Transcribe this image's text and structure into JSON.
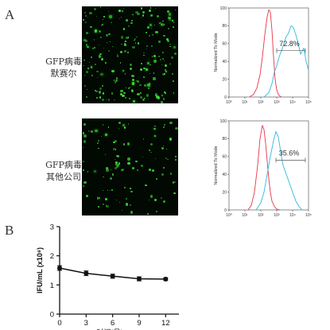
{
  "panels": {
    "A": "A",
    "B": "B"
  },
  "rows": [
    {
      "line1": "GFP病毒",
      "line2": "默赛尔",
      "gfp_density": 0.9
    },
    {
      "line1": "GFP病毒",
      "line2": "其他公司",
      "gfp_density": 0.45
    }
  ],
  "colors": {
    "red": "#e8334a",
    "cyan": "#2fb8e0",
    "gfp": "#3ee03a",
    "line": "#111111"
  },
  "chart_data": [
    {
      "type": "line",
      "subtype": "flow-cytometry-histogram",
      "ylabel": "Normalized To Mode",
      "x_scale": "log",
      "x_ticks": [
        "10⁰",
        "10¹",
        "10²",
        "10³",
        "10⁴",
        "10⁵"
      ],
      "y_ticks": [
        "0",
        "20",
        "40",
        "60",
        "80",
        "100"
      ],
      "ylim": [
        0,
        100
      ],
      "gate_label": "72.8%",
      "series": [
        {
          "color": "#e8334a",
          "x": [
            1.3,
            1.55,
            1.75,
            1.95,
            2.1,
            2.25,
            2.4,
            2.5,
            2.6,
            2.7,
            2.8,
            2.9,
            3.0,
            3.1,
            3.2,
            3.3
          ],
          "y": [
            0,
            3,
            10,
            25,
            45,
            70,
            90,
            98,
            95,
            75,
            45,
            20,
            8,
            3,
            1,
            0
          ]
        },
        {
          "color": "#2fb8e0",
          "x": [
            2.2,
            2.5,
            2.7,
            2.85,
            3.0,
            3.15,
            3.3,
            3.45,
            3.6,
            3.75,
            3.9,
            4.05,
            4.2,
            4.35,
            4.5,
            4.7,
            4.85,
            5.0
          ],
          "y": [
            0,
            5,
            15,
            28,
            35,
            45,
            52,
            60,
            68,
            72,
            80,
            78,
            70,
            60,
            48,
            55,
            40,
            30
          ]
        }
      ]
    },
    {
      "type": "line",
      "subtype": "flow-cytometry-histogram",
      "ylabel": "Normalized To Mode",
      "x_scale": "log",
      "x_ticks": [
        "10⁰",
        "10¹",
        "10²",
        "10³",
        "10⁴",
        "10⁵"
      ],
      "y_ticks": [
        "0",
        "20",
        "40",
        "60",
        "80",
        "100"
      ],
      "ylim": [
        0,
        100
      ],
      "gate_label": "35.6%",
      "series": [
        {
          "color": "#e8334a",
          "x": [
            1.2,
            1.4,
            1.6,
            1.8,
            1.95,
            2.1,
            2.2,
            2.3,
            2.4,
            2.5,
            2.6,
            2.7,
            2.85,
            3.0,
            3.2
          ],
          "y": [
            0,
            5,
            20,
            50,
            80,
            95,
            90,
            75,
            55,
            35,
            20,
            10,
            4,
            1,
            0
          ]
        },
        {
          "color": "#2fb8e0",
          "x": [
            1.7,
            2.0,
            2.2,
            2.4,
            2.6,
            2.8,
            2.95,
            3.1,
            3.25,
            3.4,
            3.6,
            3.8,
            4.0,
            4.2,
            4.4,
            4.6
          ],
          "y": [
            0,
            8,
            20,
            40,
            60,
            78,
            88,
            82,
            65,
            50,
            40,
            30,
            20,
            10,
            4,
            0
          ]
        }
      ]
    },
    {
      "type": "line",
      "xlabel": "时间(月)",
      "ylabel": "IFU/mL (x10⁸)",
      "x": [
        0,
        3,
        6,
        9,
        12
      ],
      "x_ticks": [
        "0",
        "3",
        "6",
        "9",
        "12"
      ],
      "y_ticks": [
        "0",
        "1",
        "2",
        "3"
      ],
      "xlim": [
        0,
        13.5
      ],
      "ylim": [
        0,
        3
      ],
      "series": [
        {
          "values": [
            1.58,
            1.4,
            1.3,
            1.21,
            1.2
          ],
          "errors": [
            0.08,
            0.08,
            0.07,
            0.07,
            0.05
          ]
        }
      ]
    }
  ]
}
